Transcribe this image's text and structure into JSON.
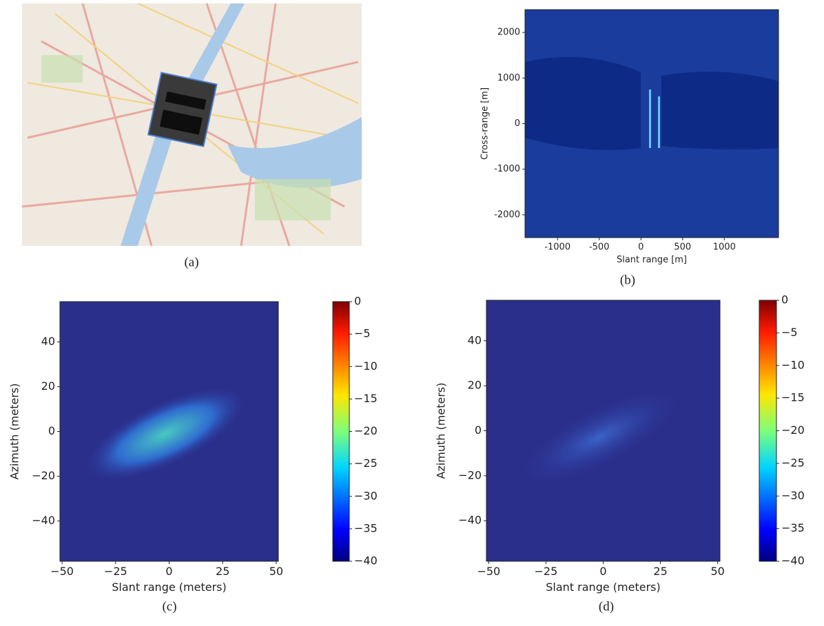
{
  "chart_data": [
    {
      "type": "image",
      "caption": "(a)"
    },
    {
      "type": "heatmap",
      "caption": "(b)",
      "xlabel": "Slant range [m]",
      "ylabel": "Cross-range [m]",
      "xlim": [
        -1390,
        1650
      ],
      "ylim": [
        -2500,
        2500
      ],
      "xticks": [
        -1000,
        -500,
        0,
        500,
        1000
      ],
      "yticks": [
        -2000,
        -1000,
        0,
        1000,
        2000
      ]
    },
    {
      "type": "heatmap",
      "caption": "(c)",
      "xlabel": "Slant range (meters)",
      "ylabel": "Azimuth (meters)",
      "xlim": [
        -51,
        51
      ],
      "ylim": [
        -58,
        58
      ],
      "xticks": [
        {
          "value": -50,
          "label": "−50"
        },
        {
          "value": -25,
          "label": "−25"
        },
        0,
        25,
        50
      ],
      "yticks": [
        {
          "value": -40,
          "label": "−40"
        },
        {
          "value": -20,
          "label": "−20"
        },
        0,
        20,
        40
      ],
      "colorbar": {
        "lim": [
          -40,
          0
        ],
        "ticks": [
          0,
          {
            "value": -5,
            "label": "−5"
          },
          {
            "value": -10,
            "label": "−10"
          },
          {
            "value": -15,
            "label": "−15"
          },
          {
            "value": -20,
            "label": "−20"
          },
          {
            "value": -25,
            "label": "−25"
          },
          {
            "value": -30,
            "label": "−30"
          },
          {
            "value": -35,
            "label": "−35"
          },
          {
            "value": -40,
            "label": "−40"
          }
        ]
      }
    },
    {
      "type": "heatmap",
      "caption": "(d)",
      "xlabel": "Slant range (meters)",
      "ylabel": "Azimuth (meters)",
      "xlim": [
        -51,
        51
      ],
      "ylim": [
        -58,
        58
      ],
      "xticks": [
        {
          "value": -50,
          "label": "−50"
        },
        {
          "value": -25,
          "label": "−25"
        },
        0,
        25,
        50
      ],
      "yticks": [
        {
          "value": -40,
          "label": "−40"
        },
        {
          "value": -20,
          "label": "−20"
        },
        0,
        20,
        40
      ],
      "colorbar": {
        "lim": [
          -40,
          0
        ],
        "ticks": [
          0,
          {
            "value": -5,
            "label": "−5"
          },
          {
            "value": -10,
            "label": "−10"
          },
          {
            "value": -15,
            "label": "−15"
          },
          {
            "value": -20,
            "label": "−20"
          },
          {
            "value": -25,
            "label": "−25"
          },
          {
            "value": -30,
            "label": "−30"
          },
          {
            "value": -35,
            "label": "−35"
          },
          {
            "value": -40,
            "label": "−40"
          }
        ]
      }
    }
  ]
}
